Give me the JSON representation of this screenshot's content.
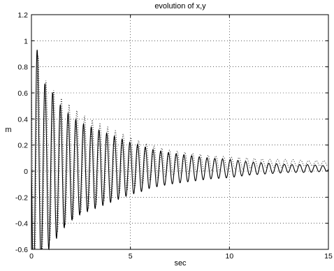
{
  "chart_data": {
    "type": "line",
    "title": "evolution of x,y",
    "xlabel": "sec",
    "ylabel": "m",
    "xlim": [
      0,
      15
    ],
    "ylim": [
      -0.6,
      1.2
    ],
    "grid": true,
    "x_ticks": [
      "0",
      "5",
      "10",
      "15"
    ],
    "y_ticks": [
      "-0.6",
      "-0.4",
      "-0.2",
      "0",
      "0.2",
      "0.4",
      "0.6",
      "0.8",
      "1",
      "1.2"
    ],
    "x_tick_values": [
      0,
      5,
      10,
      15
    ],
    "y_tick_values": [
      -0.6,
      -0.4,
      -0.2,
      0,
      0.2,
      0.4,
      0.6,
      0.8,
      1.0,
      1.2
    ],
    "series": [
      {
        "style": "solid",
        "offset": 0.02,
        "period_sec": 0.39,
        "phase": 0.25,
        "envelope_sec": [
          0,
          0.1,
          0.5,
          1.0,
          1.5,
          2.0,
          2.5,
          3.0,
          3.5,
          4.0,
          4.5,
          5.0,
          5.5,
          6.0,
          7.0,
          8.0,
          9.0,
          10.0,
          11.0,
          12.0,
          13.0,
          14.0,
          15.0
        ],
        "envelope_amplitude": [
          0.58,
          1.12,
          0.68,
          0.6,
          0.48,
          0.4,
          0.35,
          0.32,
          0.29,
          0.26,
          0.23,
          0.2,
          0.18,
          0.15,
          0.12,
          0.1,
          0.08,
          0.07,
          0.05,
          0.04,
          0.03,
          0.03,
          0.02
        ]
      },
      {
        "style": "dotted",
        "offset": 0.06,
        "period_sec": 0.39,
        "phase": 0.12,
        "envelope_sec": [
          0,
          0.2,
          0.5,
          1.0,
          1.5,
          2.0,
          2.5,
          3.0,
          3.5,
          4.0,
          4.5,
          5.0,
          5.5,
          6.0,
          7.0,
          8.0,
          9.0,
          10.0,
          11.0,
          12.0,
          13.0,
          14.0,
          15.0
        ],
        "envelope_amplitude": [
          0.9,
          0.95,
          0.68,
          0.58,
          0.5,
          0.44,
          0.38,
          0.34,
          0.3,
          0.27,
          0.23,
          0.2,
          0.17,
          0.14,
          0.1,
          0.08,
          0.06,
          0.05,
          0.04,
          0.03,
          0.03,
          0.02,
          0.02
        ]
      }
    ]
  }
}
